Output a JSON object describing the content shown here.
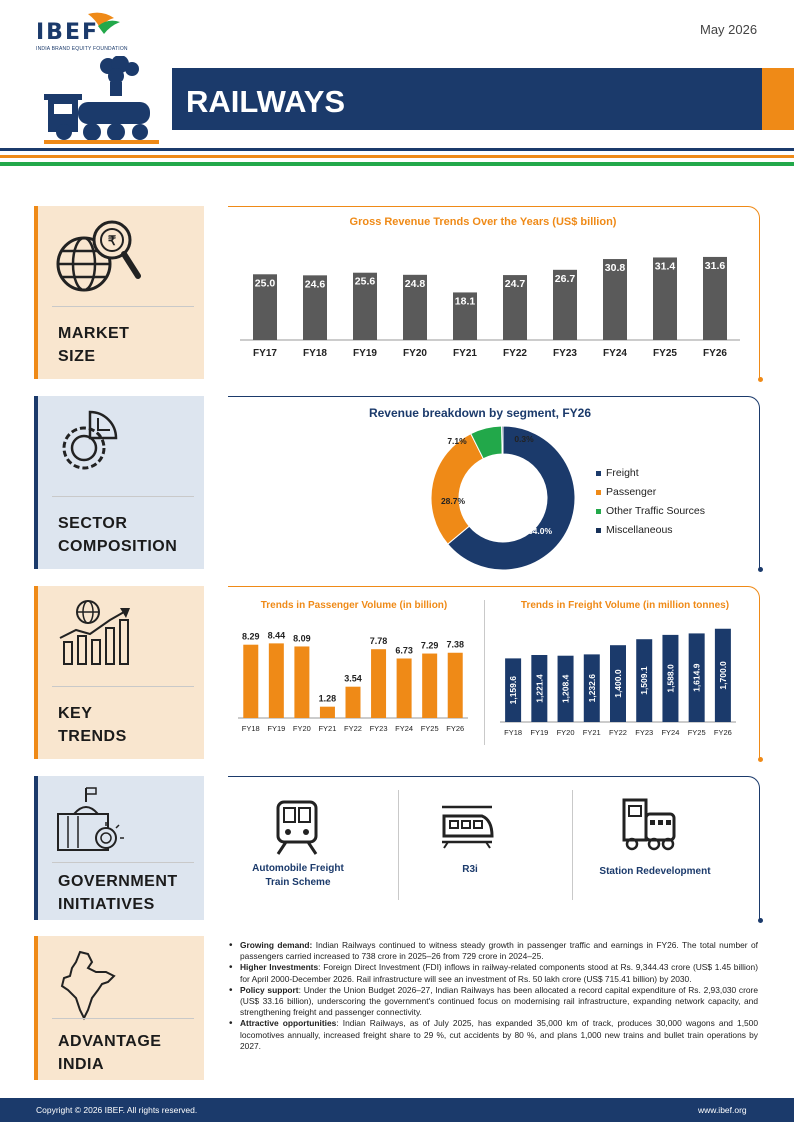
{
  "header": {
    "logo": "IBEF",
    "logo_sub": "INDIA BRAND EQUITY FOUNDATION",
    "date": "May 2026",
    "title": "RAILWAYS"
  },
  "sections": {
    "market_size": [
      "MARKET",
      "SIZE"
    ],
    "sector_composition": [
      "SECTOR",
      "COMPOSITION"
    ],
    "key_trends": [
      "KEY",
      "TRENDS"
    ],
    "government_initiatives": [
      "GOVERNMENT",
      "INITIATIVES"
    ],
    "advantage_india": [
      "ADVANTAGE",
      "INDIA"
    ]
  },
  "chart_data": [
    {
      "type": "bar",
      "title": "Gross Revenue Trends Over the Years (US$ billion)",
      "categories": [
        "FY17",
        "FY18",
        "FY19",
        "FY20",
        "FY21",
        "FY22",
        "FY23",
        "FY24",
        "FY25",
        "FY26"
      ],
      "values": [
        25.0,
        24.6,
        25.6,
        24.8,
        18.1,
        24.7,
        26.7,
        30.8,
        31.4,
        31.6
      ],
      "labels": [
        "25.0",
        "24.6",
        "25.6",
        "24.8",
        "18.1",
        "24.7",
        "26.7",
        "30.8",
        "31.4",
        "31.6"
      ],
      "color": "#5a5a5a"
    },
    {
      "type": "pie",
      "title": "Revenue breakdown by segment, FY26",
      "categories": [
        "Freight",
        "Passenger",
        "Other Traffic Sources",
        "Miscellaneous"
      ],
      "values": [
        64.0,
        28.7,
        7.1,
        0.3
      ],
      "labels": [
        "64.0%",
        "28.7%",
        "7.1%",
        "0.3%"
      ],
      "colors": [
        "#1b3a6b",
        "#ef8a17",
        "#22a84a",
        "#163058"
      ],
      "legend_position": "right"
    },
    {
      "type": "bar",
      "title": "Trends in Passenger Volume (in billion)",
      "categories": [
        "FY18",
        "FY19",
        "FY20",
        "FY21",
        "FY22",
        "FY23",
        "FY24",
        "FY25",
        "FY26"
      ],
      "values": [
        8.29,
        8.44,
        8.09,
        1.28,
        3.54,
        7.78,
        6.73,
        7.29,
        7.38
      ],
      "labels": [
        "8.29",
        "8.44",
        "8.09",
        "1.28",
        "3.54",
        "7.78",
        "6.73",
        "7.29",
        "7.38"
      ],
      "color": "#ef8a17"
    },
    {
      "type": "bar",
      "title": "Trends in Freight Volume (in million tonnes)",
      "categories": [
        "FY18",
        "FY19",
        "FY20",
        "FY21",
        "FY22",
        "FY23",
        "FY24",
        "FY25",
        "FY26"
      ],
      "values": [
        1159.6,
        1221.4,
        1208.4,
        1232.6,
        1400.0,
        1509.1,
        1588.0,
        1614.9,
        1700.0
      ],
      "labels": [
        "1,159.6",
        "1,221.4",
        "1,208.4",
        "1,232.6",
        "1,400.0",
        "1,509.1",
        "1,588.0",
        "1,614.9",
        "1,700.0"
      ],
      "color": "#1b3a6b"
    }
  ],
  "initiatives": [
    {
      "label": "Automobile Freight Train Scheme",
      "icon": "train-front-icon"
    },
    {
      "label": "R3i",
      "icon": "bullet-train-icon"
    },
    {
      "label": "Station Redevelopment",
      "icon": "locomotive-icon"
    }
  ],
  "advantage": [
    {
      "bold": "Growing demand:",
      "text": " Indian Railways continued to witness steady growth in passenger traffic and earnings in FY26. The total number of passengers carried increased to 738 crore in 2025–26 from 729 crore in 2024–25."
    },
    {
      "bold": "Higher Investments",
      "text": ": Foreign Direct Investment (FDI) inflows in railway-related components stood at Rs. 9,344.43 crore (US$ 1.45 billion) for April 2000-December 2026. Rail infrastructure will see an investment of Rs. 50 lakh crore (US$ 715.41 billion) by 2030."
    },
    {
      "bold": "Policy support",
      "text": ": Under the Union Budget 2026–27, Indian Railways has been allocated a record capital expenditure of Rs. 2,93,030 crore (US$ 33.16 billion), underscoring the government's continued focus on modernising rail infrastructure, expanding network capacity, and strengthening freight and passenger connectivity."
    },
    {
      "bold": "Attractive opportunities",
      "text": ": Indian Railways, as of July 2025, has expanded 35,000 km of track, produces 30,000 wagons and 1,500 locomotives annually, increased freight share to 29 %, cut accidents by 80 %, and plans 1,000 new trains and bullet train operations by 2027."
    }
  ],
  "footer": {
    "copyright": "Copyright © 2026 IBEF. All rights reserved.",
    "website": "www.ibef.org"
  },
  "colors": {
    "navy": "#1b3a6b",
    "orange": "#ef8a17",
    "green": "#22a84a"
  }
}
